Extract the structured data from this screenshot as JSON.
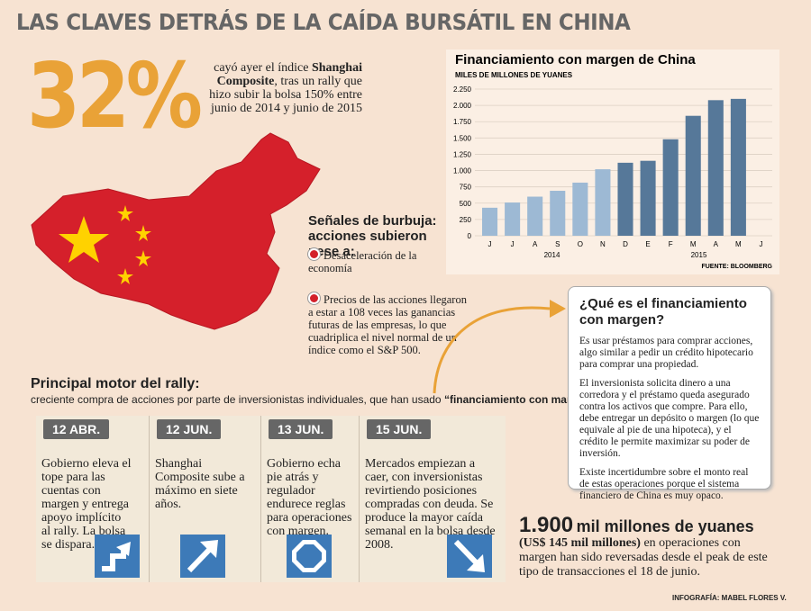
{
  "header": {
    "title": "LAS CLAVES DETRÁS DE LA CAÍDA BURSÁTIL EN CHINA"
  },
  "stat": {
    "figure": "32%",
    "text": [
      "cayó ayer el índice ",
      "Shanghai Composite",
      ", tras un rally que hizo subir la bolsa 150% entre junio de 2014 y junio de 2015"
    ]
  },
  "signals": {
    "title": "Señales de burbuja: acciones subieron pese a:",
    "items": [
      "Desaceleración de la economía",
      "Precios de las acciones llegaron a estar a 108 veces las ganancias futuras de las empresas, lo que cuadriplica el nivel normal de un índice como el S&P 500."
    ]
  },
  "rally": {
    "title": "Principal motor del rally:",
    "text": [
      "creciente compra de acciones por parte de inversionistas individuales, que han usado ",
      "“financiamiento con margen”."
    ]
  },
  "timeline": [
    {
      "date": "12 ABR.",
      "text": "Gobierno eleva el tope para las cuentas con margen y entrega apoyo implícito al rally. La bolsa se dispara."
    },
    {
      "date": "12 JUN.",
      "text": "Shanghai Composite sube a máximo en siete años."
    },
    {
      "date": "13 JUN.",
      "text": "Gobierno echa pie atrás y regulador endurece reglas para operaciones con margen."
    },
    {
      "date": "15 JUN.",
      "text": "Mercados empiezan a caer, con inversionistas revirtiendo posiciones compradas con deuda. Se produce la mayor caída semanal en la bolsa desde 2008."
    }
  ],
  "box": {
    "title": "¿Qué es el financiamiento con margen?",
    "paragraphs": [
      "Es usar préstamos para comprar acciones, algo similar a pedir un crédito hipotecario para comprar una propiedad.",
      "El inversionista solicita dinero a una corredora y el préstamo queda asegurado contra los activos que compre. Para ello, debe entregar un depósito o margen (lo que equivale al pie de una hipoteca), y el crédito le permite maximizar su poder de inversión.",
      "Existe incertidumbre sobre el monto real de estas operaciones porque el sistema financiero de China es muy opaco."
    ]
  },
  "bottom": {
    "number": "1.900",
    "unit": "mil millones de yuanes",
    "sub": "(US$ 145 mil millones)",
    "text": " en operaciones con margen han sido reversadas desde el peak de este tipo de transacciones el 18 de junio."
  },
  "credit": "INFOGRAFÍA: MABEL FLORES V.",
  "chart_data": {
    "type": "bar",
    "title": "Financiamiento con margen de China",
    "subtitle": "MILES DE MILLONES DE YUANES",
    "categories": [
      "J",
      "J",
      "A",
      "S",
      "O",
      "N",
      "D",
      "E",
      "F",
      "M",
      "A",
      "M",
      "J"
    ],
    "values": [
      430,
      510,
      600,
      690,
      815,
      1020,
      1120,
      1150,
      1480,
      1840,
      2080,
      2100,
      null
    ],
    "colors": [
      "#9db9d4",
      "#9db9d4",
      "#9db9d4",
      "#9db9d4",
      "#9db9d4",
      "#9db9d4",
      "#567899",
      "#567899",
      "#567899",
      "#567899",
      "#567899",
      "#567899",
      "#567899"
    ],
    "years": [
      "2014",
      "2015"
    ],
    "ylim": [
      0,
      2250
    ],
    "yticks": [
      0,
      250,
      500,
      750,
      {
        "value": 1000,
        "label": "1.000"
      },
      {
        "value": 1250,
        "label": "1.250"
      },
      {
        "value": 1500,
        "label": "1.500"
      },
      {
        "value": 1750,
        "label": "1.750"
      },
      {
        "value": 2000,
        "label": "2.000"
      },
      {
        "value": 2250,
        "label": "2.250"
      }
    ],
    "grid": true,
    "source": "FUENTE: BLOOMBERG"
  }
}
